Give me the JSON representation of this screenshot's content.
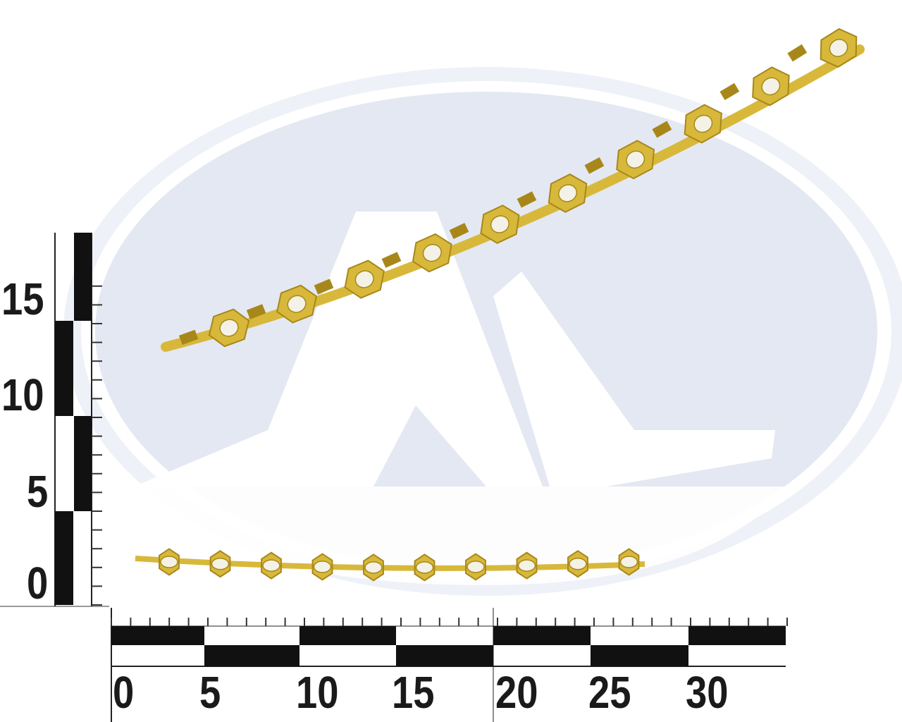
{
  "colors": {
    "background": "#ffffff",
    "watermark_fill": "#e4e8f2",
    "watermark_ring": "#eef1f7",
    "brass": "#d8b83a",
    "brass_dark": "#a8871a",
    "ruler_black": "#111111"
  },
  "watermark": {
    "text": "A1"
  },
  "vertical_ruler": {
    "labels": [
      "15",
      "10",
      "5",
      "0"
    ],
    "unit_max": 17
  },
  "horizontal_ruler": {
    "labels": [
      "0",
      "5",
      "10",
      "15",
      "20",
      "25",
      "30"
    ],
    "unit_max": 35
  },
  "products": {
    "upper_strip_terminals": 10,
    "lower_strip_terminals": 10
  }
}
